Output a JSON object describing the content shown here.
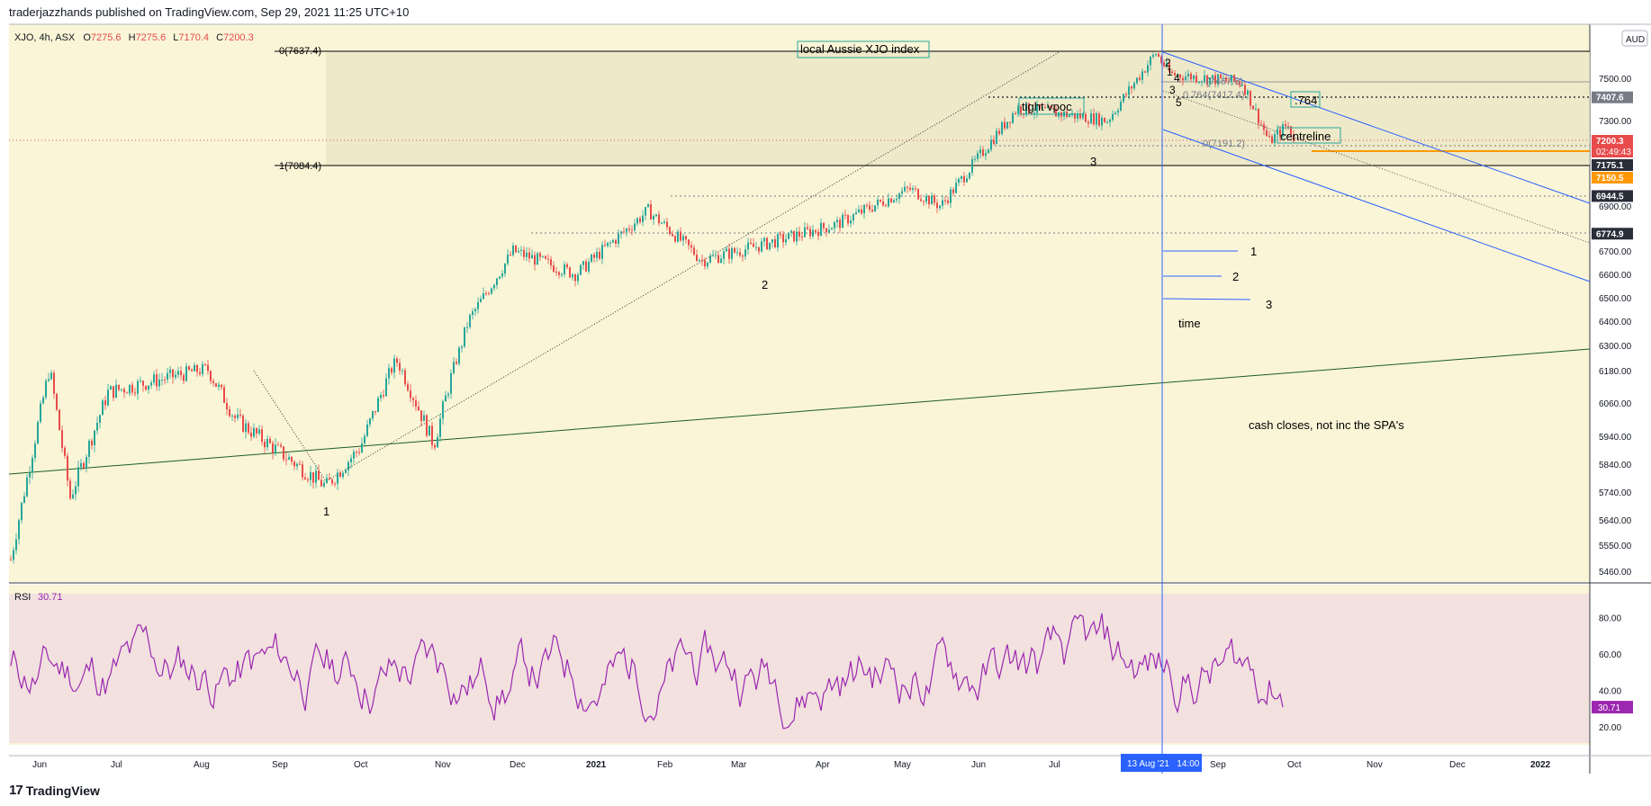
{
  "header": {
    "publisher": "traderjazzhands published on TradingView.com, Sep 29, 2021 11:25 UTC+10"
  },
  "footer": {
    "brand": "TradingView",
    "logo_text": "17"
  },
  "legend": {
    "symbol": "XJO, 4h, ASX",
    "o_label": "O",
    "o": "7275.6",
    "h_label": "H",
    "h": "7275.6",
    "l_label": "L",
    "l": "7170.4",
    "c_label": "C",
    "c": "7200.3"
  },
  "currency": "AUD",
  "rsi_legend": {
    "label": "RSI",
    "value": "30.71"
  },
  "colors": {
    "background": "#faf5d7",
    "rsi_band": "#f2e1df",
    "down": "#e84b4b",
    "up": "#26a69a",
    "rsi_line": "#9c27b0",
    "channel": "#2962ff",
    "trendline": "#1b5e20",
    "orange": "#ff9800"
  },
  "chart_data": [
    {
      "type": "candlestick",
      "title": "",
      "x_ticks": [
        "Jun",
        "Jul",
        "Aug",
        "Sep",
        "Oct",
        "Nov",
        "Dec",
        "2021",
        "Feb",
        "Mar",
        "Apr",
        "May",
        "Jun",
        "Jul",
        "Aug",
        "Sep",
        "Oct",
        "Nov",
        "Dec",
        "2022"
      ],
      "y_ticks": [
        5460,
        5550,
        5640,
        5740,
        5840,
        5940,
        6060,
        6180,
        6300,
        6400,
        6500,
        6600,
        6700,
        6900,
        7300,
        7500
      ],
      "ylim": [
        5390,
        7700
      ],
      "price_labels": [
        {
          "value": 7407.6,
          "text": "7407.6",
          "style": "gray"
        },
        {
          "value": 7200.3,
          "text": "7200.3",
          "style": "red"
        },
        {
          "value": 7175.1,
          "text": "7175.1",
          "style": "dark"
        },
        {
          "value": 7150.5,
          "text": "7150.5",
          "style": "orange"
        },
        {
          "value": 6944.5,
          "text": "6944.5",
          "style": "dark"
        },
        {
          "value": 6774.9,
          "text": "6774.9",
          "style": "dark"
        }
      ],
      "countdown": "02:49:43",
      "fib_levels": [
        {
          "value": 7637.4,
          "label": "0(7637.4)"
        },
        {
          "value": 7084.4,
          "label": "1(7084.4)"
        }
      ],
      "cursor_label": "13 Aug '21   14:00",
      "annotations": [
        {
          "text": "local Aussie XJO index",
          "boxed": true
        },
        {
          "text": "tight vpoc",
          "boxed": true
        },
        {
          "text": "centreline",
          "boxed": true
        },
        {
          "text": ".764",
          "boxed": true
        },
        {
          "text": "0.764(7417.4)",
          "boxed": false
        },
        {
          "text": "0(7191.2)",
          "boxed": false
        },
        {
          "text": "(7467.6)",
          "boxed": false
        },
        {
          "text": "time",
          "boxed": false
        },
        {
          "text": "cash closes, not inc the SPA's",
          "boxed": false
        }
      ],
      "wave_labels": [
        "1",
        "2",
        "3",
        "2",
        "1",
        "4",
        "3",
        "5"
      ],
      "time_labels": [
        "1",
        "2",
        "3"
      ]
    },
    {
      "type": "line",
      "title": "RSI",
      "y_ticks": [
        20,
        40,
        60,
        80
      ],
      "ylim": [
        10,
        95
      ],
      "band": [
        30,
        70
      ],
      "last_value": 30.71
    }
  ]
}
